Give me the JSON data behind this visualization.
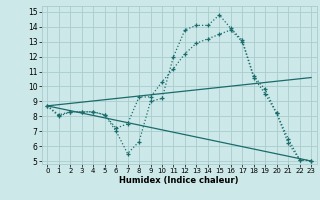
{
  "xlabel": "Humidex (Indice chaleur)",
  "bg_color": "#cce8e8",
  "grid_color": "#aacccc",
  "line_color": "#1a6b6b",
  "xlim": [
    -0.5,
    23.5
  ],
  "ylim": [
    4.8,
    15.4
  ],
  "yticks": [
    5,
    6,
    7,
    8,
    9,
    10,
    11,
    12,
    13,
    14,
    15
  ],
  "xticks": [
    0,
    1,
    2,
    3,
    4,
    5,
    6,
    7,
    8,
    9,
    10,
    11,
    12,
    13,
    14,
    15,
    16,
    17,
    18,
    19,
    20,
    21,
    22,
    23
  ],
  "line1_x": [
    0,
    1,
    2,
    3,
    4,
    5,
    6,
    7,
    8,
    9,
    10,
    11,
    12,
    13,
    14,
    15,
    16,
    17,
    18,
    19,
    20,
    21,
    22,
    23
  ],
  "line1_y": [
    8.7,
    8.0,
    8.3,
    8.3,
    8.3,
    8.1,
    7.0,
    5.5,
    6.3,
    9.0,
    9.2,
    12.0,
    13.8,
    14.1,
    14.1,
    14.8,
    13.9,
    13.1,
    10.7,
    9.8,
    8.2,
    6.2,
    5.1,
    5.0
  ],
  "line2_x": [
    0,
    1,
    2,
    3,
    4,
    5,
    6,
    7,
    8,
    9,
    10,
    11,
    12,
    13,
    14,
    15,
    16,
    17,
    18,
    19,
    20,
    21,
    22,
    23
  ],
  "line2_y": [
    8.7,
    8.1,
    8.3,
    8.3,
    8.3,
    8.1,
    7.2,
    7.5,
    9.3,
    9.3,
    10.3,
    11.2,
    12.2,
    12.9,
    13.2,
    13.5,
    13.8,
    13.0,
    10.6,
    9.5,
    8.2,
    6.5,
    5.1,
    5.0
  ],
  "line3_x": [
    0,
    23
  ],
  "line3_y": [
    8.7,
    10.6
  ],
  "line4_x": [
    0,
    23
  ],
  "line4_y": [
    8.7,
    5.0
  ]
}
